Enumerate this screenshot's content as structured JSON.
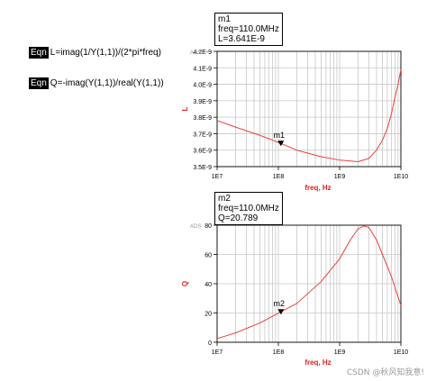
{
  "equations": [
    {
      "tag": "Eqn",
      "expression": "L=imag(1/Y(1,1))/(2*pi*freq)"
    },
    {
      "tag": "Eqn",
      "expression": "Q=-imag(Y(1,1))/real(Y(1,1))"
    }
  ],
  "watermark": "CSDN @秋风知我意!",
  "colors": {
    "trace": "#e8413c",
    "axis_label": "#d22",
    "grid": "#c8c8c8",
    "corner_label": "#999999"
  },
  "chart_data": [
    {
      "type": "line",
      "corner_label": "ADS",
      "xlabel": "freq, Hz",
      "ylabel": "L",
      "xscale": "log",
      "xlim": [
        10000000.0,
        10000000000.0
      ],
      "ylim": [
        3.5e-09,
        4.2e-09
      ],
      "x_ticks": [
        "1E7",
        "1E8",
        "1E9",
        "1E10"
      ],
      "y_ticks": [
        "3.5E-9",
        "3.6E-9",
        "3.7E-9",
        "3.8E-9",
        "3.9E-9",
        "4.0E-9",
        "4.1E-9",
        "4.2E-9"
      ],
      "series": [
        {
          "x": [
            10000000.0,
            20000000.0,
            50000000.0,
            110000000.0,
            200000000.0,
            500000000.0,
            1000000000.0,
            2000000000.0,
            3000000000.0,
            4000000000.0,
            5000000000.0,
            6000000000.0,
            7000000000.0,
            8000000000.0,
            9000000000.0,
            10000000000.0
          ],
          "values": [
            3.78e-09,
            3.74e-09,
            3.69e-09,
            3.641e-09,
            3.6e-09,
            3.56e-09,
            3.54e-09,
            3.53e-09,
            3.55e-09,
            3.6e-09,
            3.66e-09,
            3.73e-09,
            3.82e-09,
            3.92e-09,
            4e-09,
            4.09e-09
          ]
        }
      ],
      "marker": {
        "name": "m1",
        "lines": [
          "m1",
          "freq=110.0MHz",
          "L=3.641E-9"
        ],
        "x": 110000000.0,
        "y": 3.641e-09
      }
    },
    {
      "type": "line",
      "corner_label": "ADS",
      "xlabel": "freq, Hz",
      "ylabel": "Q",
      "xscale": "log",
      "xlim": [
        10000000.0,
        10000000000.0
      ],
      "ylim": [
        0,
        80
      ],
      "x_ticks": [
        "1E7",
        "1E8",
        "1E9",
        "1E10"
      ],
      "y_ticks": [
        "0",
        "20",
        "40",
        "60",
        "80"
      ],
      "series": [
        {
          "x": [
            10000000.0,
            20000000.0,
            50000000.0,
            110000000.0,
            200000000.0,
            500000000.0,
            1000000000.0,
            1500000000.0,
            2000000000.0,
            2500000000.0,
            3000000000.0,
            4000000000.0,
            5000000000.0,
            7000000000.0,
            10000000000.0
          ],
          "values": [
            2.5,
            6.4,
            13.2,
            20.789,
            26.5,
            41.5,
            57,
            70,
            77.5,
            79.5,
            78.5,
            70,
            60,
            45,
            25
          ]
        }
      ],
      "marker": {
        "name": "m2",
        "lines": [
          "m2",
          "freq=110.0MHz",
          "Q=20.789"
        ],
        "x": 110000000.0,
        "y": 20.789
      }
    }
  ]
}
